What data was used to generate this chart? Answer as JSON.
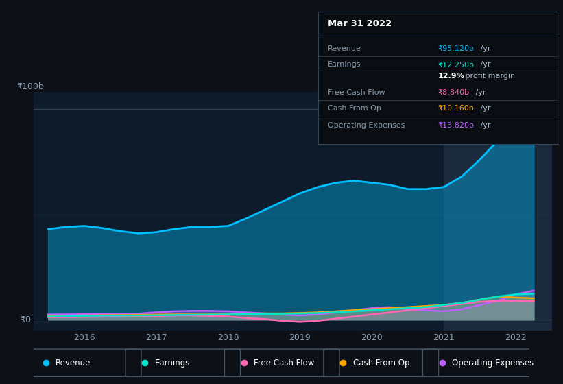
{
  "bg_color": "#0d1117",
  "chart_bg": "#0d1b2a",
  "title": "Mar 31 2022",
  "ytick_labels": [
    "₹0",
    "₹100b"
  ],
  "ytick_values": [
    0,
    100
  ],
  "xtick_labels": [
    "2016",
    "2017",
    "2018",
    "2019",
    "2020",
    "2021",
    "2022"
  ],
  "xtick_values": [
    2016,
    2017,
    2018,
    2019,
    2020,
    2021,
    2022
  ],
  "x_range": [
    2015.3,
    2022.5
  ],
  "y_range": [
    -5,
    108
  ],
  "highlight_x_start": 2021,
  "highlight_x_end": 2022.5,
  "legend": [
    {
      "label": "Revenue",
      "color": "#00bfff"
    },
    {
      "label": "Earnings",
      "color": "#00e5cc"
    },
    {
      "label": "Free Cash Flow",
      "color": "#ff69b4"
    },
    {
      "label": "Cash From Op",
      "color": "#ffa500"
    },
    {
      "label": "Operating Expenses",
      "color": "#bf5fff"
    }
  ],
  "series": {
    "x": [
      2015.5,
      2015.75,
      2016.0,
      2016.25,
      2016.5,
      2016.75,
      2017.0,
      2017.25,
      2017.5,
      2017.75,
      2018.0,
      2018.25,
      2018.5,
      2018.75,
      2019.0,
      2019.25,
      2019.5,
      2019.75,
      2020.0,
      2020.25,
      2020.5,
      2020.75,
      2021.0,
      2021.25,
      2021.5,
      2021.75,
      2022.0,
      2022.25
    ],
    "revenue": [
      43,
      44,
      44.5,
      43.5,
      42,
      41,
      41.5,
      43,
      44,
      44,
      44.5,
      48,
      52,
      56,
      60,
      63,
      65,
      66,
      65,
      64,
      62,
      62,
      63,
      68,
      76,
      85,
      93,
      95
    ],
    "earnings": [
      1.5,
      1.6,
      1.8,
      1.9,
      2.0,
      2.0,
      2.1,
      2.2,
      2.3,
      2.4,
      2.5,
      2.6,
      2.7,
      2.8,
      3.0,
      3.2,
      3.5,
      4.0,
      4.5,
      5.0,
      5.5,
      6.0,
      7.0,
      8.0,
      9.5,
      11.0,
      12.0,
      12.25
    ],
    "free_cash_flow": [
      1.2,
      1.2,
      1.3,
      1.4,
      1.5,
      1.5,
      1.8,
      2.0,
      2.0,
      1.8,
      1.5,
      0.8,
      0.3,
      -0.5,
      -1.0,
      -0.5,
      0.5,
      1.5,
      2.5,
      3.5,
      4.5,
      5.5,
      6.5,
      7.5,
      8.5,
      9.0,
      9.0,
      8.84
    ],
    "cash_from_op": [
      1.8,
      1.9,
      2.0,
      2.1,
      2.2,
      2.3,
      2.4,
      2.5,
      2.5,
      2.5,
      2.6,
      2.8,
      3.0,
      3.0,
      3.2,
      3.5,
      4.0,
      4.5,
      5.0,
      5.5,
      6.0,
      6.5,
      7.0,
      8.0,
      9.5,
      11.0,
      10.5,
      10.16
    ],
    "operating_expenses": [
      2.5,
      2.5,
      2.6,
      2.7,
      2.8,
      2.9,
      3.5,
      4.0,
      4.2,
      4.2,
      4.0,
      3.5,
      3.0,
      2.5,
      2.0,
      2.5,
      3.5,
      4.5,
      5.5,
      6.0,
      5.0,
      4.5,
      4.0,
      5.0,
      7.0,
      9.0,
      12.0,
      13.82
    ]
  }
}
